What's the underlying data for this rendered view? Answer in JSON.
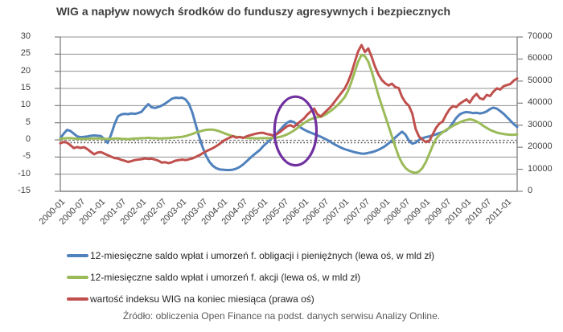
{
  "title": "WIG a napływ nowych środków do funduszy agresywnych i bezpiecznych",
  "source": "Źródło: obliczenia Open Finance na podst. danych serwisu Analizy Online.",
  "chart_data": {
    "type": "line",
    "title": "WIG a napływ nowych środków do funduszy agresywnych i bezpiecznych",
    "x_start": "2000-01",
    "x_frequency": "monthly",
    "x_tick_labels": [
      "2000-01",
      "2000-07",
      "2001-01",
      "2001-07",
      "2002-01",
      "2002-07",
      "2003-01",
      "2003-07",
      "2004-01",
      "2004-07",
      "2005-01",
      "2005-07",
      "2006-01",
      "2006-07",
      "2007-01",
      "2007-07",
      "2008-01",
      "2008-07",
      "2009-01",
      "2009-07",
      "2010-01",
      "2010-07",
      "2011-01"
    ],
    "left_axis": {
      "min": -15,
      "max": 30,
      "step": 5,
      "tick_labels": [
        "30",
        "25",
        "20",
        "15",
        "10",
        "5",
        "0",
        "-5",
        "-10",
        "-15"
      ]
    },
    "right_axis": {
      "min": 0,
      "max": 70000,
      "step": 10000,
      "tick_labels": [
        "70000",
        "60000",
        "50000",
        "40000",
        "30000",
        "20000",
        "10000",
        "0"
      ]
    },
    "zero_line_dotted": true,
    "grid": "horizontal",
    "legend_position": "bottom-left",
    "series": [
      {
        "id": "bonds",
        "legend": "12-miesięczne saldo wpłat i umorzeń f. obligacji i pieniężnych (lewa oś, w mld zł)",
        "color": "#4F81BD",
        "axis": "left",
        "values": [
          0.5,
          1.8,
          2.9,
          2.6,
          1.8,
          1.0,
          0.8,
          0.9,
          1.0,
          1.2,
          1.3,
          1.2,
          1.1,
          0.2,
          -0.9,
          1.5,
          4.5,
          6.8,
          7.4,
          7.6,
          7.5,
          7.7,
          7.6,
          7.8,
          8.2,
          9.4,
          10.4,
          9.5,
          9.3,
          9.6,
          10.0,
          10.6,
          11.3,
          12.0,
          12.3,
          12.2,
          12.3,
          11.8,
          10.5,
          8.0,
          4.5,
          1.0,
          -2.0,
          -4.5,
          -6.3,
          -7.5,
          -8.2,
          -8.6,
          -8.7,
          -8.8,
          -8.8,
          -8.7,
          -8.4,
          -7.9,
          -7.2,
          -6.3,
          -5.4,
          -4.5,
          -3.7,
          -2.9,
          -1.8,
          -0.9,
          0.0,
          0.9,
          1.9,
          3.0,
          4.1,
          5.0,
          5.5,
          5.2,
          4.4,
          3.6,
          3.0,
          2.5,
          2.1,
          1.7,
          1.3,
          0.9,
          0.4,
          -0.1,
          -0.7,
          -1.3,
          -1.8,
          -2.3,
          -2.7,
          -3.0,
          -3.3,
          -3.6,
          -3.8,
          -4.0,
          -4.0,
          -3.8,
          -3.6,
          -3.3,
          -2.9,
          -2.4,
          -1.8,
          -1.0,
          -0.2,
          0.7,
          1.6,
          2.4,
          1.5,
          -0.2,
          -1.1,
          -0.8,
          0.0,
          0.5,
          0.8,
          1.0,
          1.3,
          1.6,
          2.0,
          2.3,
          2.7,
          3.6,
          5.0,
          6.4,
          7.4,
          7.9,
          8.1,
          8.0,
          7.8,
          7.9,
          7.7,
          7.9,
          8.3,
          9.0,
          9.4,
          9.1,
          8.4,
          7.6,
          6.6,
          5.6,
          4.6,
          3.8
        ]
      },
      {
        "id": "equity",
        "legend": "12-miesięczne saldo wpłat i umorzeń f. akcji (lewa oś, w mld zł)",
        "color": "#9BBB59",
        "axis": "left",
        "values": [
          0.3,
          0.4,
          0.5,
          0.5,
          0.4,
          0.3,
          0.3,
          0.3,
          0.3,
          0.4,
          0.4,
          0.4,
          0.4,
          0.3,
          0.3,
          0.3,
          0.4,
          0.4,
          0.3,
          0.3,
          0.2,
          0.3,
          0.4,
          0.4,
          0.5,
          0.5,
          0.6,
          0.5,
          0.5,
          0.4,
          0.4,
          0.5,
          0.5,
          0.6,
          0.7,
          0.8,
          0.9,
          1.1,
          1.4,
          1.7,
          2.1,
          2.4,
          2.7,
          2.9,
          3.0,
          3.0,
          2.8,
          2.5,
          2.1,
          1.7,
          1.4,
          1.1,
          0.9,
          0.8,
          0.7,
          0.6,
          0.5,
          0.5,
          0.4,
          0.5,
          0.5,
          0.5,
          0.5,
          0.6,
          0.7,
          0.9,
          1.2,
          1.6,
          2.1,
          2.7,
          3.4,
          4.2,
          4.9,
          5.5,
          6.0,
          6.4,
          6.6,
          6.7,
          7.2,
          7.8,
          8.5,
          9.3,
          10.2,
          11.2,
          12.4,
          14.2,
          16.8,
          19.8,
          22.8,
          24.8,
          24.4,
          22.8,
          20.0,
          16.5,
          13.0,
          10.0,
          7.0,
          4.0,
          1.0,
          -2.0,
          -4.8,
          -6.8,
          -8.2,
          -9.0,
          -9.4,
          -9.6,
          -9.2,
          -8.2,
          -6.5,
          -4.2,
          -1.8,
          0.2,
          1.4,
          2.2,
          2.9,
          3.5,
          4.1,
          4.6,
          5.1,
          5.5,
          5.8,
          6.0,
          5.8,
          5.4,
          4.8,
          4.1,
          3.5,
          2.9,
          2.5,
          2.1,
          1.9,
          1.7,
          1.6,
          1.5,
          1.5,
          1.6
        ]
      },
      {
        "id": "wig",
        "legend": "wartość indeksu WIG na koniec miesiąca (prawa oś)",
        "color": "#C0504D",
        "axis": "right",
        "values": [
          21800,
          22400,
          22100,
          20900,
          19600,
          20100,
          19700,
          20000,
          19100,
          17900,
          16800,
          17600,
          17800,
          17100,
          16400,
          15700,
          15100,
          14900,
          14300,
          13900,
          13300,
          13700,
          14200,
          14400,
          14600,
          14900,
          14700,
          14800,
          14400,
          13900,
          13000,
          13200,
          12800,
          13200,
          13900,
          14200,
          14400,
          14200,
          14500,
          14900,
          15600,
          16300,
          17200,
          18100,
          18800,
          19500,
          20400,
          21400,
          22700,
          23600,
          24300,
          25000,
          24300,
          24700,
          24200,
          24900,
          25400,
          25800,
          26200,
          26500,
          26500,
          26000,
          25700,
          25300,
          26000,
          27000,
          28300,
          29500,
          30000,
          29200,
          30500,
          31800,
          33000,
          34800,
          36200,
          37500,
          34800,
          34000,
          35500,
          37000,
          38500,
          40500,
          42500,
          44500,
          46500,
          49500,
          53500,
          58500,
          63500,
          66300,
          63200,
          64800,
          61000,
          56500,
          53000,
          50500,
          49000,
          48000,
          48800,
          47300,
          46800,
          42800,
          40300,
          38800,
          35300,
          28300,
          24800,
          23500,
          22300,
          22700,
          25700,
          28700,
          30700,
          31700,
          34700,
          37200,
          38700,
          38200,
          39700,
          40700,
          41700,
          40200,
          42700,
          44200,
          42200,
          41700,
          43700,
          43200,
          45200,
          46700,
          46200,
          47700,
          48200,
          48700,
          50200,
          51200
        ]
      }
    ],
    "annotation": {
      "shape": "ellipse",
      "meaning": "highlight of bond/equity flow crossover 2005-2006",
      "color": "#7030A0",
      "center_month_index": 69.5,
      "center_value": 2.6,
      "radius_months": 6.2,
      "radius_values": 10
    }
  }
}
